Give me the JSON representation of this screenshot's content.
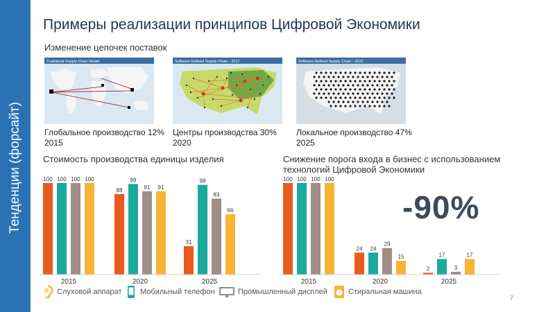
{
  "sidebar": {
    "text": "Тенденции (форсайт)"
  },
  "title": "Примеры реализации принципов Цифровой Экономики",
  "subtitle": "Изменение цепочек поставок",
  "maps": [
    {
      "caption": "Traditional Supply Chain Model",
      "label1": "Глобальное производство 12%",
      "label2": "2015"
    },
    {
      "caption": "Software Defined Supply Chain - 2017",
      "label1": "Центры производства 30%",
      "label2": "2020"
    },
    {
      "caption": "Software Defined Supply Chain - 2022",
      "label1": "Локальное производство 47%",
      "label2": "2025"
    }
  ],
  "colors": {
    "hearing": "#e85a1e",
    "phone": "#1aa99d",
    "display": "#a08d87",
    "washer": "#f8b335",
    "sidebar": "#2a72b4"
  },
  "big_figure": "-90%",
  "legend": [
    {
      "label": "Слуховой аппарат",
      "icon": "hearing-aid-icon"
    },
    {
      "label": "Мобильный телефон",
      "icon": "mobile-phone-icon"
    },
    {
      "label": "Промышленный дисплей",
      "icon": "industrial-display-icon"
    },
    {
      "label": "Стиральная машина",
      "icon": "washing-machine-icon"
    }
  ],
  "page_number": "7",
  "chart_data": [
    {
      "type": "bar",
      "title": "Стоимость производства единицы изделия",
      "categories": [
        "2015",
        "2020",
        "2025"
      ],
      "series": [
        {
          "name": "Слуховой аппарат",
          "values": [
            100,
            88,
            31
          ]
        },
        {
          "name": "Мобильный телефон",
          "values": [
            100,
            99,
            98
          ]
        },
        {
          "name": "Промышленный дисплей",
          "values": [
            100,
            91,
            83
          ]
        },
        {
          "name": "Стиральная машина",
          "values": [
            100,
            91,
            66
          ]
        }
      ],
      "ylim": [
        0,
        100
      ],
      "grid": false
    },
    {
      "type": "bar",
      "title": "Снижение порога входа в бизнес с использованием технологий Цифровой Экономики",
      "categories": [
        "2015",
        "2020",
        "2025"
      ],
      "series": [
        {
          "name": "Слуховой аппарат",
          "values": [
            100,
            24,
            2
          ]
        },
        {
          "name": "Мобильный телефон",
          "values": [
            100,
            24,
            17
          ]
        },
        {
          "name": "Промышленный дисплей",
          "values": [
            100,
            29,
            3
          ]
        },
        {
          "name": "Стиральная машина",
          "values": [
            100,
            15,
            17
          ]
        }
      ],
      "ylim": [
        0,
        100
      ],
      "grid": false
    }
  ]
}
